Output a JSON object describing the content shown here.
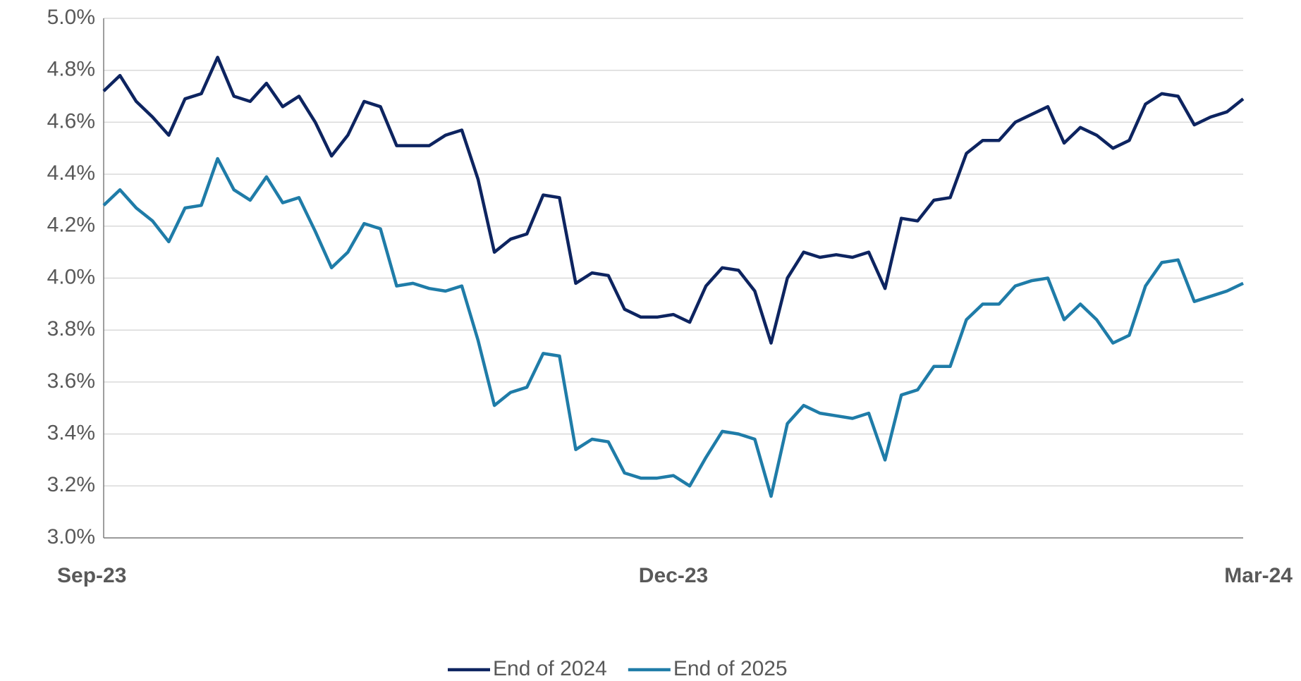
{
  "chart_data": {
    "type": "line",
    "categories": [
      "Sep-23",
      null,
      null,
      null,
      null,
      null,
      null,
      null,
      null,
      null,
      null,
      null,
      null,
      null,
      null,
      null,
      null,
      null,
      null,
      null,
      null,
      null,
      null,
      null,
      null,
      null,
      null,
      null,
      null,
      null,
      null,
      null,
      null,
      null,
      null,
      "Dec-23",
      null,
      null,
      null,
      null,
      null,
      null,
      null,
      null,
      null,
      null,
      null,
      null,
      null,
      null,
      null,
      null,
      null,
      null,
      null,
      null,
      null,
      null,
      null,
      null,
      null,
      null,
      null,
      null,
      null,
      null,
      null,
      null,
      null,
      null,
      "Mar-24"
    ],
    "series": [
      {
        "name": "End of 2024",
        "color": "#0d2460",
        "values": [
          4.72,
          4.78,
          4.68,
          4.62,
          4.55,
          4.69,
          4.71,
          4.85,
          4.7,
          4.68,
          4.75,
          4.66,
          4.7,
          4.6,
          4.47,
          4.55,
          4.68,
          4.66,
          4.51,
          4.51,
          4.51,
          4.55,
          4.57,
          4.38,
          4.1,
          4.15,
          4.17,
          4.32,
          4.31,
          3.98,
          4.02,
          4.01,
          3.88,
          3.85,
          3.85,
          3.86,
          3.83,
          3.97,
          4.04,
          4.03,
          3.95,
          3.75,
          4.0,
          4.1,
          4.08,
          4.09,
          4.08,
          4.1,
          3.96,
          4.23,
          4.22,
          4.3,
          4.31,
          4.48,
          4.53,
          4.53,
          4.6,
          4.63,
          4.66,
          4.52,
          4.58,
          4.55,
          4.5,
          4.53,
          4.67,
          4.71,
          4.7,
          4.59,
          4.62,
          4.64,
          4.69
        ]
      },
      {
        "name": "End of 2025",
        "color": "#1f7ca8",
        "values": [
          4.28,
          4.34,
          4.27,
          4.22,
          4.14,
          4.27,
          4.28,
          4.46,
          4.34,
          4.3,
          4.39,
          4.29,
          4.31,
          4.18,
          4.04,
          4.1,
          4.21,
          4.19,
          3.97,
          3.98,
          3.96,
          3.95,
          3.97,
          3.76,
          3.51,
          3.56,
          3.58,
          3.71,
          3.7,
          3.34,
          3.38,
          3.37,
          3.25,
          3.23,
          3.23,
          3.24,
          3.2,
          3.31,
          3.41,
          3.4,
          3.38,
          3.16,
          3.44,
          3.51,
          3.48,
          3.47,
          3.46,
          3.48,
          3.3,
          3.55,
          3.57,
          3.66,
          3.66,
          3.84,
          3.9,
          3.9,
          3.97,
          3.99,
          4.0,
          3.84,
          3.9,
          3.84,
          3.75,
          3.78,
          3.97,
          4.06,
          4.07,
          3.91,
          3.93,
          3.95,
          3.98
        ]
      }
    ],
    "ylim": [
      3.0,
      5.0
    ],
    "yticks": [
      {
        "value": 3.0,
        "label": "3.0%"
      },
      {
        "value": 3.2,
        "label": "3.2%"
      },
      {
        "value": 3.4,
        "label": "3.4%"
      },
      {
        "value": 3.6,
        "label": "3.6%"
      },
      {
        "value": 3.8,
        "label": "3.8%"
      },
      {
        "value": 4.0,
        "label": "4.0%"
      },
      {
        "value": 4.2,
        "label": "4.2%"
      },
      {
        "value": 4.4,
        "label": "4.4%"
      },
      {
        "value": 4.6,
        "label": "4.6%"
      },
      {
        "value": 4.8,
        "label": "4.8%"
      },
      {
        "value": 5.0,
        "label": "5.0%"
      }
    ],
    "grid": true,
    "legend": "bottom"
  }
}
